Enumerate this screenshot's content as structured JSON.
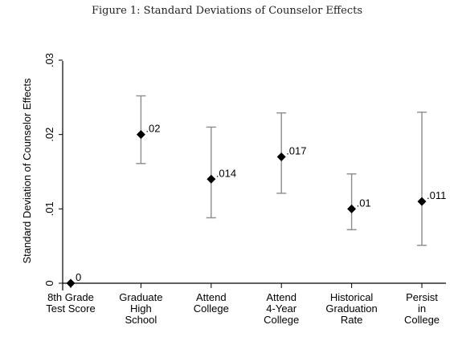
{
  "figure_caption": "Figure 1: Standard Deviations of Counselor Effects",
  "chart_data": {
    "type": "scatter",
    "title": "",
    "ylabel": "Standard Deviation of Counselor Effects",
    "xlabel": "",
    "ylim": [
      0,
      0.03
    ],
    "yticks": [
      0,
      0.01,
      0.02,
      0.03
    ],
    "ytick_labels": [
      "0",
      ".01",
      ".02",
      ".03"
    ],
    "categories": [
      [
        "8th Grade",
        "Test Score"
      ],
      [
        "Graduate",
        "High",
        "School"
      ],
      [
        "Attend",
        "College"
      ],
      [
        "Attend",
        "4-Year",
        "College"
      ],
      [
        "Historical",
        "Graduation",
        "Rate"
      ],
      [
        "Persist",
        "in",
        "College"
      ]
    ],
    "values": [
      0,
      0.02,
      0.014,
      0.017,
      0.01,
      0.011
    ],
    "ci_low": [
      0,
      0.0161,
      0.0088,
      0.0121,
      0.0072,
      0.0051
    ],
    "ci_high": [
      0,
      0.0252,
      0.021,
      0.0229,
      0.0147,
      0.023
    ],
    "data_labels": [
      "0",
      ".02",
      ".014",
      ".017",
      ".01",
      ".011"
    ],
    "marker": "diamond",
    "marker_color": "#000000",
    "error_bar_color": "#8c8c8c",
    "grid": false
  }
}
